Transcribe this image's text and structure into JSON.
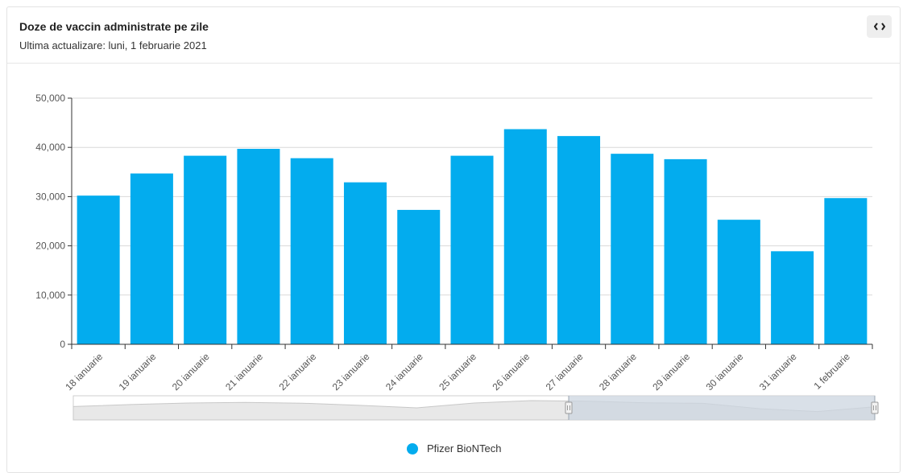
{
  "header": {
    "title": "Doze de vaccin administrate pe zile",
    "subtitle": "Ultima actualizare: luni, 1 februarie 2021",
    "embed_icon": "code-icon"
  },
  "colors": {
    "bar": "#03acee",
    "grid": "#d9d9d9",
    "axis": "#333333",
    "navigator_mask": "#ccd5e0"
  },
  "chart_data": {
    "type": "bar",
    "title": "",
    "xlabel": "",
    "ylabel": "",
    "categories": [
      "18 ianuarie",
      "19 ianuarie",
      "20 ianuarie",
      "21 ianuarie",
      "22 ianuarie",
      "23 ianuarie",
      "24 ianuarie",
      "25 ianuarie",
      "26 ianuarie",
      "27 ianuarie",
      "28 ianuarie",
      "29 ianuarie",
      "30 ianuarie",
      "31 ianuarie",
      "1 februarie"
    ],
    "series": [
      {
        "name": "Pfizer BioNTech",
        "values": [
          30200,
          34700,
          38300,
          39700,
          37800,
          32900,
          27300,
          38300,
          43700,
          42300,
          38700,
          37600,
          25300,
          18900,
          29700
        ]
      }
    ],
    "ylim": [
      0,
      50000
    ],
    "yticks": [
      0,
      10000,
      20000,
      30000,
      40000,
      50000
    ],
    "ytick_labels": [
      "0",
      "10,000",
      "20,000",
      "30,000",
      "40,000",
      "50,000"
    ],
    "grid": true,
    "legend_position": "bottom-center"
  },
  "legend": {
    "items": [
      {
        "label": "Pfizer BioNTech"
      }
    ]
  }
}
